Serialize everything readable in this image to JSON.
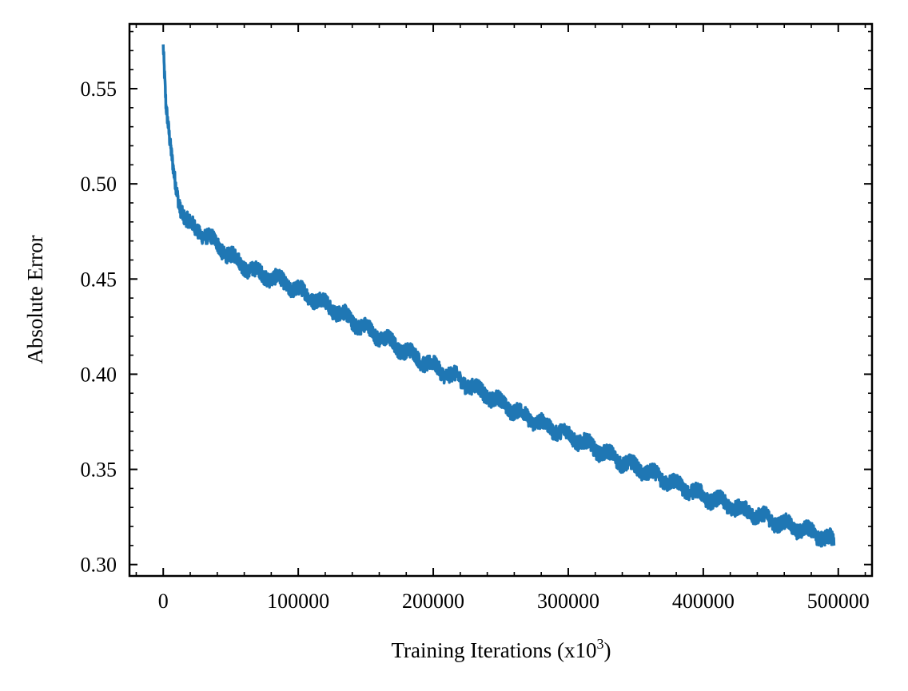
{
  "chart_data": {
    "type": "line",
    "title": "",
    "xlabel": "Training Iterations (x10",
    "xlabel_sup": "3",
    "xlabel_close": ")",
    "ylabel": "Absolute Error",
    "xlim": [
      -25000,
      525000
    ],
    "ylim": [
      0.294,
      0.584
    ],
    "x_ticks": [
      0,
      100000,
      200000,
      300000,
      400000,
      500000
    ],
    "x_tick_labels": [
      "0",
      "100000",
      "200000",
      "300000",
      "400000",
      "500000"
    ],
    "y_ticks": [
      0.3,
      0.35,
      0.4,
      0.45,
      0.5,
      0.55
    ],
    "y_tick_labels": [
      "0.30",
      "0.35",
      "0.40",
      "0.45",
      "0.50",
      "0.55"
    ],
    "grid": false,
    "legend": "none",
    "series": [
      {
        "color": "#1f77b4",
        "noise_amplitude": 0.004,
        "x": [
          0,
          2000,
          5000,
          8000,
          12000,
          16000,
          20000,
          30000,
          40000,
          50000,
          60000,
          70000,
          80000,
          90000,
          100000,
          120000,
          140000,
          160000,
          180000,
          200000,
          220000,
          240000,
          260000,
          280000,
          300000,
          320000,
          340000,
          360000,
          380000,
          400000,
          420000,
          440000,
          460000,
          480000,
          490000,
          497000
        ],
        "y": [
          0.572,
          0.54,
          0.52,
          0.505,
          0.49,
          0.482,
          0.478,
          0.474,
          0.468,
          0.462,
          0.457,
          0.453,
          0.451,
          0.448,
          0.444,
          0.437,
          0.428,
          0.42,
          0.412,
          0.404,
          0.397,
          0.389,
          0.381,
          0.374,
          0.368,
          0.361,
          0.354,
          0.348,
          0.342,
          0.336,
          0.331,
          0.326,
          0.321,
          0.317,
          0.314,
          0.312
        ]
      }
    ]
  }
}
